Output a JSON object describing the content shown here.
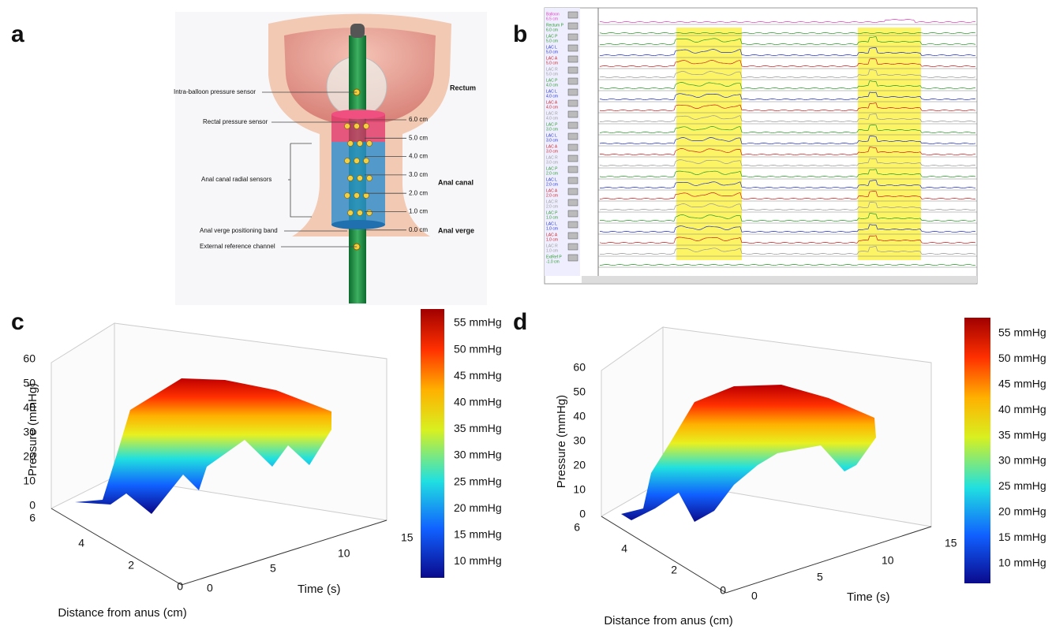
{
  "panel_labels": [
    "a",
    "b",
    "c",
    "d"
  ],
  "diagram": {
    "left_labels": [
      "Intra-balloon pressure sensor",
      "Rectal pressure sensor",
      "Anal canal radial sensors",
      "Anal verge positioning band",
      "External reference channel"
    ],
    "depth_labels": [
      "6.0 cm",
      "5.0 cm",
      "4.0 cm",
      "3.0 cm",
      "2.0 cm",
      "1.0 cm",
      "0.0 cm"
    ],
    "region_labels": [
      "Rectum",
      "Anal canal",
      "Anal verge"
    ]
  },
  "manometry": {
    "channels": [
      {
        "name": "Balloon",
        "depth": "6.5 cm"
      },
      {
        "name": "Rectum P",
        "depth": "6.0 cm"
      },
      {
        "name": "LAC P",
        "depth": "5.0 cm"
      },
      {
        "name": "LAC L",
        "depth": "5.0 cm"
      },
      {
        "name": "LAC A",
        "depth": "5.0 cm"
      },
      {
        "name": "LAC R",
        "depth": "5.0 cm"
      },
      {
        "name": "LAC P",
        "depth": "4.0 cm"
      },
      {
        "name": "LAC L",
        "depth": "4.0 cm"
      },
      {
        "name": "LAC A",
        "depth": "4.0 cm"
      },
      {
        "name": "LAC R",
        "depth": "4.0 cm"
      },
      {
        "name": "LAC P",
        "depth": "3.0 cm"
      },
      {
        "name": "LAC L",
        "depth": "3.0 cm"
      },
      {
        "name": "LAC A",
        "depth": "3.0 cm"
      },
      {
        "name": "LAC R",
        "depth": "3.0 cm"
      },
      {
        "name": "LAC P",
        "depth": "2.0 cm"
      },
      {
        "name": "LAC L",
        "depth": "2.0 cm"
      },
      {
        "name": "LAC A",
        "depth": "2.0 cm"
      },
      {
        "name": "LAC R",
        "depth": "2.0 cm"
      },
      {
        "name": "LAC P",
        "depth": "1.0 cm"
      },
      {
        "name": "LAC L",
        "depth": "1.0 cm"
      },
      {
        "name": "LAC A",
        "depth": "1.0 cm"
      },
      {
        "name": "LAC R",
        "depth": "1.0 cm"
      },
      {
        "name": "ExtRef P",
        "depth": "-1.0 cm"
      }
    ]
  },
  "plots": [
    {
      "z_label": "Pressure (mmHg)",
      "z_ticks": [
        0,
        10,
        20,
        30,
        40,
        50,
        60
      ],
      "x_label": "Time (s)",
      "x_ticks": [
        0,
        5,
        10,
        15
      ],
      "y_label": "Distance from anus (cm)",
      "y_ticks": [
        0,
        2,
        4,
        6
      ],
      "colorbar": [
        "55 mmHg",
        "50 mmHg",
        "45 mmHg",
        "40 mmHg",
        "35 mmHg",
        "30 mmHg",
        "25 mmHg",
        "20 mmHg",
        "15 mmHg",
        "10 mmHg"
      ]
    },
    {
      "z_label": "Pressure (mmHg)",
      "z_ticks": [
        0,
        10,
        20,
        30,
        40,
        50,
        60
      ],
      "x_label": "Time (s)",
      "x_ticks": [
        0,
        5,
        10,
        15
      ],
      "y_label": "Distance from anus (cm)",
      "y_ticks": [
        0,
        2,
        4,
        6
      ],
      "colorbar": [
        "55 mmHg",
        "50 mmHg",
        "45 mmHg",
        "40 mmHg",
        "35 mmHg",
        "30 mmHg",
        "25 mmHg",
        "20 mmHg",
        "15 mmHg",
        "10 mmHg"
      ]
    }
  ]
}
